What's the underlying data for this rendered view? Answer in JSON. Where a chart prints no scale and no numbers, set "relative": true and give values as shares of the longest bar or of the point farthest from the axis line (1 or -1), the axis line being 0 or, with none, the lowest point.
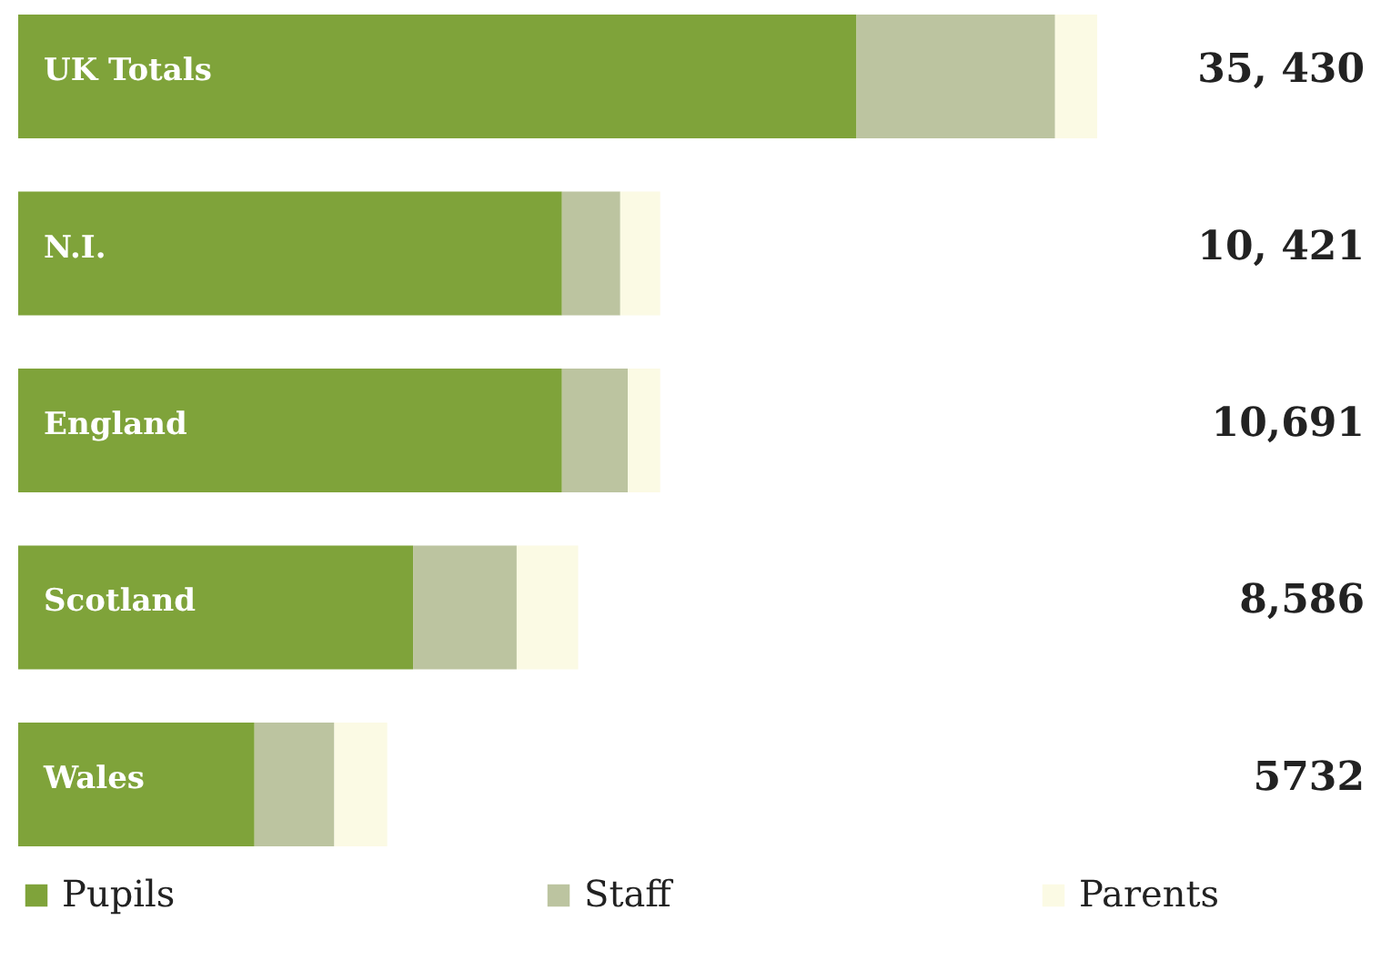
{
  "chart_data": {
    "type": "bar",
    "orientation": "horizontal",
    "stacked": true,
    "relative": true,
    "categories": [
      "UK Totals",
      "N.I.",
      "England",
      "Scotland",
      "Wales"
    ],
    "series": [
      {
        "name": "Pupils",
        "color": "#7fa33a",
        "values": [
          0.777,
          0.504,
          0.504,
          0.366,
          0.219
        ]
      },
      {
        "name": "Staff",
        "color": "#bcc4a0",
        "values": [
          0.184,
          0.054,
          0.061,
          0.096,
          0.074
        ]
      },
      {
        "name": "Parents",
        "color": "#fbfae4",
        "values": [
          0.039,
          0.037,
          0.03,
          0.057,
          0.049
        ]
      }
    ],
    "annotations": [
      "35, 430",
      "10, 421",
      "10,691",
      "8,586",
      "5732"
    ],
    "legend": "bottom"
  }
}
